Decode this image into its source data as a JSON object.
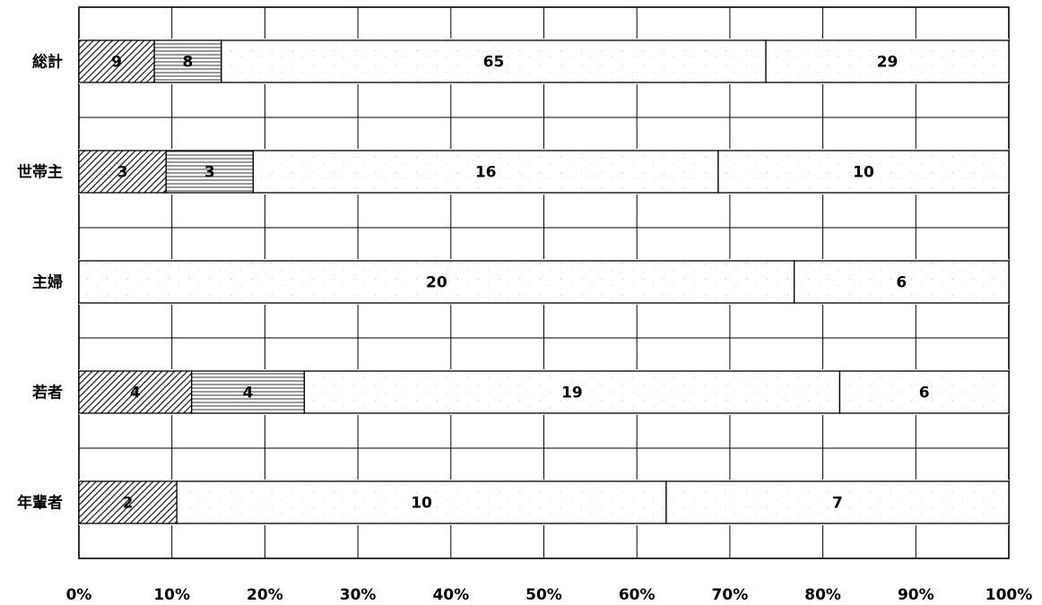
{
  "chart_data": {
    "type": "bar",
    "orientation": "horizontal",
    "stacking": "percent",
    "categories": [
      "総計",
      "世帯主",
      "主婦",
      "若者",
      "年輩者"
    ],
    "series": [
      {
        "values": [
          9,
          3,
          0,
          4,
          2
        ],
        "pattern": "diagonal-hatch"
      },
      {
        "values": [
          8,
          3,
          0,
          4,
          0
        ],
        "pattern": "horizontal-hatch"
      },
      {
        "values": [
          65,
          16,
          20,
          19,
          10
        ],
        "pattern": "light-speckle"
      },
      {
        "values": [
          29,
          10,
          6,
          6,
          7
        ],
        "pattern": "light-speckle"
      }
    ],
    "segment_labels": [
      [
        "9",
        "8",
        "65",
        "29"
      ],
      [
        "3",
        "3",
        "16",
        "10"
      ],
      [
        "",
        "0",
        "20",
        "6"
      ],
      [
        "4",
        "4",
        "19",
        "6"
      ],
      [
        "2",
        "0",
        "10",
        "7"
      ]
    ],
    "x_ticks": [
      "0%",
      "10%",
      "20%",
      "30%",
      "40%",
      "50%",
      "60%",
      "70%",
      "80%",
      "90%",
      "100%"
    ],
    "xlim": [
      0,
      100
    ],
    "grid": true,
    "legend": "none",
    "title": "",
    "xlabel": "",
    "ylabel": ""
  }
}
